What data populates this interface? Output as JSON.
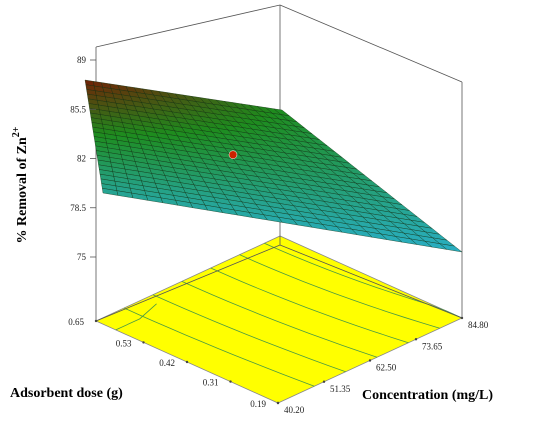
{
  "chart_data": {
    "type": "surface3d",
    "title": "",
    "z_axis": {
      "label_main": "% Removal of Zn",
      "label_sup": "2+",
      "ticks": [
        "75",
        "78.5",
        "82",
        "85.5",
        "89"
      ],
      "range": [
        75,
        89
      ]
    },
    "x_axis": {
      "label": "Adsorbent dose (g)",
      "ticks": [
        "0.19",
        "0.31",
        "0.42",
        "0.53",
        "0.65"
      ],
      "range": [
        0.19,
        0.65
      ]
    },
    "y_axis": {
      "label": "Concentration (mg/L)",
      "ticks": [
        "40.20",
        "51.35",
        "62.50",
        "73.65",
        "84.80"
      ],
      "range": [
        40.2,
        84.8
      ]
    },
    "surface_corners": [
      {
        "dose": 0.65,
        "concentration": 40.2,
        "removal": 87.6
      },
      {
        "dose": 0.65,
        "concentration": 84.8,
        "removal": 82.6
      },
      {
        "dose": 0.19,
        "concentration": 40.2,
        "removal": 77.4
      },
      {
        "dose": 0.19,
        "concentration": 84.8,
        "removal": 75.4
      }
    ],
    "design_point": {
      "dose": 0.42,
      "concentration": 62.5,
      "removal": 82.8
    },
    "colors": {
      "floor": "#ffff00",
      "high": "#8b0000",
      "mid": "#1e8c1e",
      "low": "#2ab0cc",
      "contour": "#4a9a44",
      "point": "#cc2200"
    },
    "grid": true
  }
}
